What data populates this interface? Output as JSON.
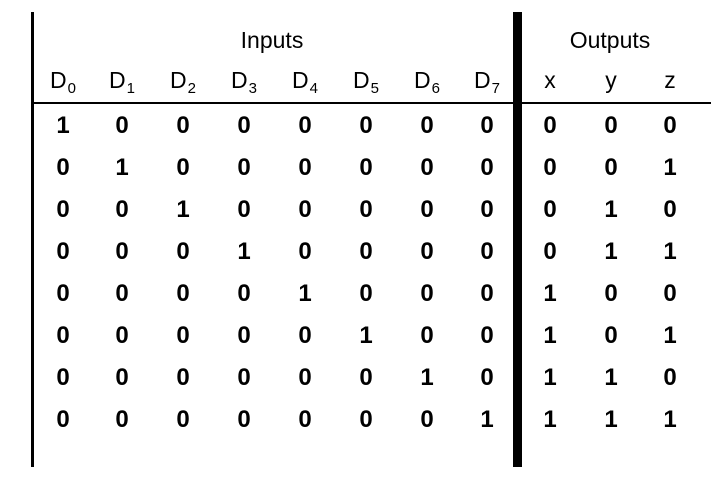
{
  "table": {
    "groups": {
      "inputs_label": "Inputs",
      "outputs_label": "Outputs"
    },
    "input_headers": [
      {
        "base": "D",
        "sub": "0"
      },
      {
        "base": "D",
        "sub": "1"
      },
      {
        "base": "D",
        "sub": "2"
      },
      {
        "base": "D",
        "sub": "3"
      },
      {
        "base": "D",
        "sub": "4"
      },
      {
        "base": "D",
        "sub": "5"
      },
      {
        "base": "D",
        "sub": "6"
      },
      {
        "base": "D",
        "sub": "7"
      }
    ],
    "output_headers": [
      "x",
      "y",
      "z"
    ],
    "rows": [
      {
        "inputs": [
          "1",
          "0",
          "0",
          "0",
          "0",
          "0",
          "0",
          "0"
        ],
        "outputs": [
          "0",
          "0",
          "0"
        ]
      },
      {
        "inputs": [
          "0",
          "1",
          "0",
          "0",
          "0",
          "0",
          "0",
          "0"
        ],
        "outputs": [
          "0",
          "0",
          "1"
        ]
      },
      {
        "inputs": [
          "0",
          "0",
          "1",
          "0",
          "0",
          "0",
          "0",
          "0"
        ],
        "outputs": [
          "0",
          "1",
          "0"
        ]
      },
      {
        "inputs": [
          "0",
          "0",
          "0",
          "1",
          "0",
          "0",
          "0",
          "0"
        ],
        "outputs": [
          "0",
          "1",
          "1"
        ]
      },
      {
        "inputs": [
          "0",
          "0",
          "0",
          "0",
          "1",
          "0",
          "0",
          "0"
        ],
        "outputs": [
          "1",
          "0",
          "0"
        ]
      },
      {
        "inputs": [
          "0",
          "0",
          "0",
          "0",
          "0",
          "1",
          "0",
          "0"
        ],
        "outputs": [
          "1",
          "0",
          "1"
        ]
      },
      {
        "inputs": [
          "0",
          "0",
          "0",
          "0",
          "0",
          "0",
          "1",
          "0"
        ],
        "outputs": [
          "1",
          "1",
          "0"
        ]
      },
      {
        "inputs": [
          "0",
          "0",
          "0",
          "0",
          "0",
          "0",
          "0",
          "1"
        ],
        "outputs": [
          "1",
          "1",
          "1"
        ]
      }
    ]
  }
}
